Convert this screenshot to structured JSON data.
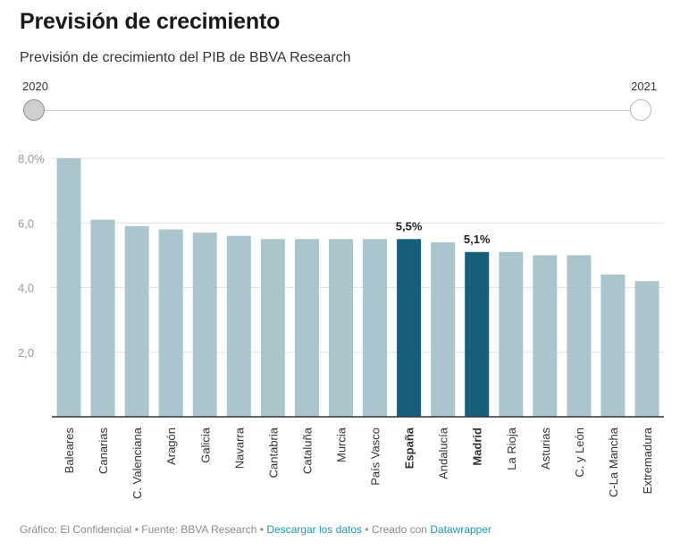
{
  "header": {
    "title": "Previsión de crecimiento",
    "subtitle": "Previsión de crecimiento del PIB de BBVA Research"
  },
  "slider": {
    "start_label": "2020",
    "end_label": "2021"
  },
  "colors": {
    "bar": "#abc5cc",
    "highlight": "#165e7a",
    "grid": "#e2e2e2",
    "axis": "#333333",
    "tick_label": "#9a9a9a",
    "link": "#1a9bb5"
  },
  "chart_data": {
    "type": "bar",
    "title": "Previsión de crecimiento del PIB de BBVA Research",
    "xlabel": "",
    "ylabel": "",
    "ylim": [
      0,
      8
    ],
    "yticks": [
      2,
      4,
      6,
      8
    ],
    "ytick_labels": [
      "2,0",
      "4,0",
      "6,0",
      "8,0%"
    ],
    "grid": true,
    "categories": [
      "Baleares",
      "Canarias",
      "C. Valenciana",
      "Aragón",
      "Galicia",
      "Navarra",
      "Cantabria",
      "Cataluña",
      "Murcia",
      "País Vasco",
      "España",
      "Andalucía",
      "Madrid",
      "La Rioja",
      "Asturias",
      "C. y León",
      "C-La Mancha",
      "Extremadura"
    ],
    "values": [
      8.0,
      6.1,
      5.9,
      5.8,
      5.7,
      5.6,
      5.5,
      5.5,
      5.5,
      5.5,
      5.5,
      5.4,
      5.1,
      5.1,
      5.0,
      5.0,
      4.4,
      4.2
    ],
    "highlighted": [
      "España",
      "Madrid"
    ],
    "data_labels": {
      "España": "5,5%",
      "Madrid": "5,1%"
    }
  },
  "footer": {
    "credit": "Gráfico: El Confidencial",
    "separator": " • ",
    "source": "Fuente: BBVA Research",
    "download_link": "Descargar los datos",
    "created_with": "Creado con",
    "tool_link": "Datawrapper"
  }
}
